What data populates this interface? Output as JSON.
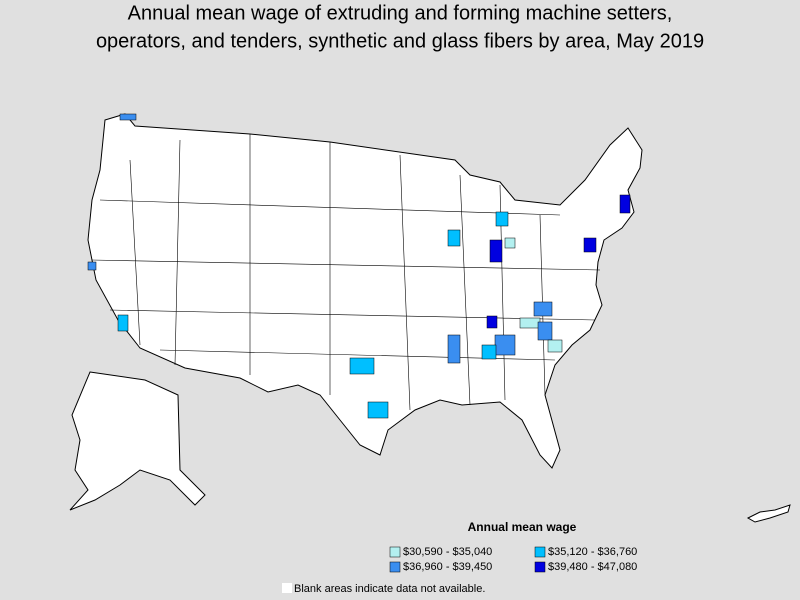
{
  "title": [
    "Annual mean wage of extruding and forming machine setters,",
    "operators, and tenders, synthetic and glass fibers by area, May 2019"
  ],
  "legend": {
    "title": "Annual mean wage",
    "entries": [
      {
        "label": "$30,590 - $35,040",
        "color": "#b3f0f0"
      },
      {
        "label": "$35,120 - $36,760",
        "color": "#00bfff"
      },
      {
        "label": "$36,960 - $39,450",
        "color": "#3a8ef0"
      },
      {
        "label": "$39,480 - $47,080",
        "color": "#0000e0"
      }
    ]
  },
  "note": "Blank areas indicate data not available."
}
